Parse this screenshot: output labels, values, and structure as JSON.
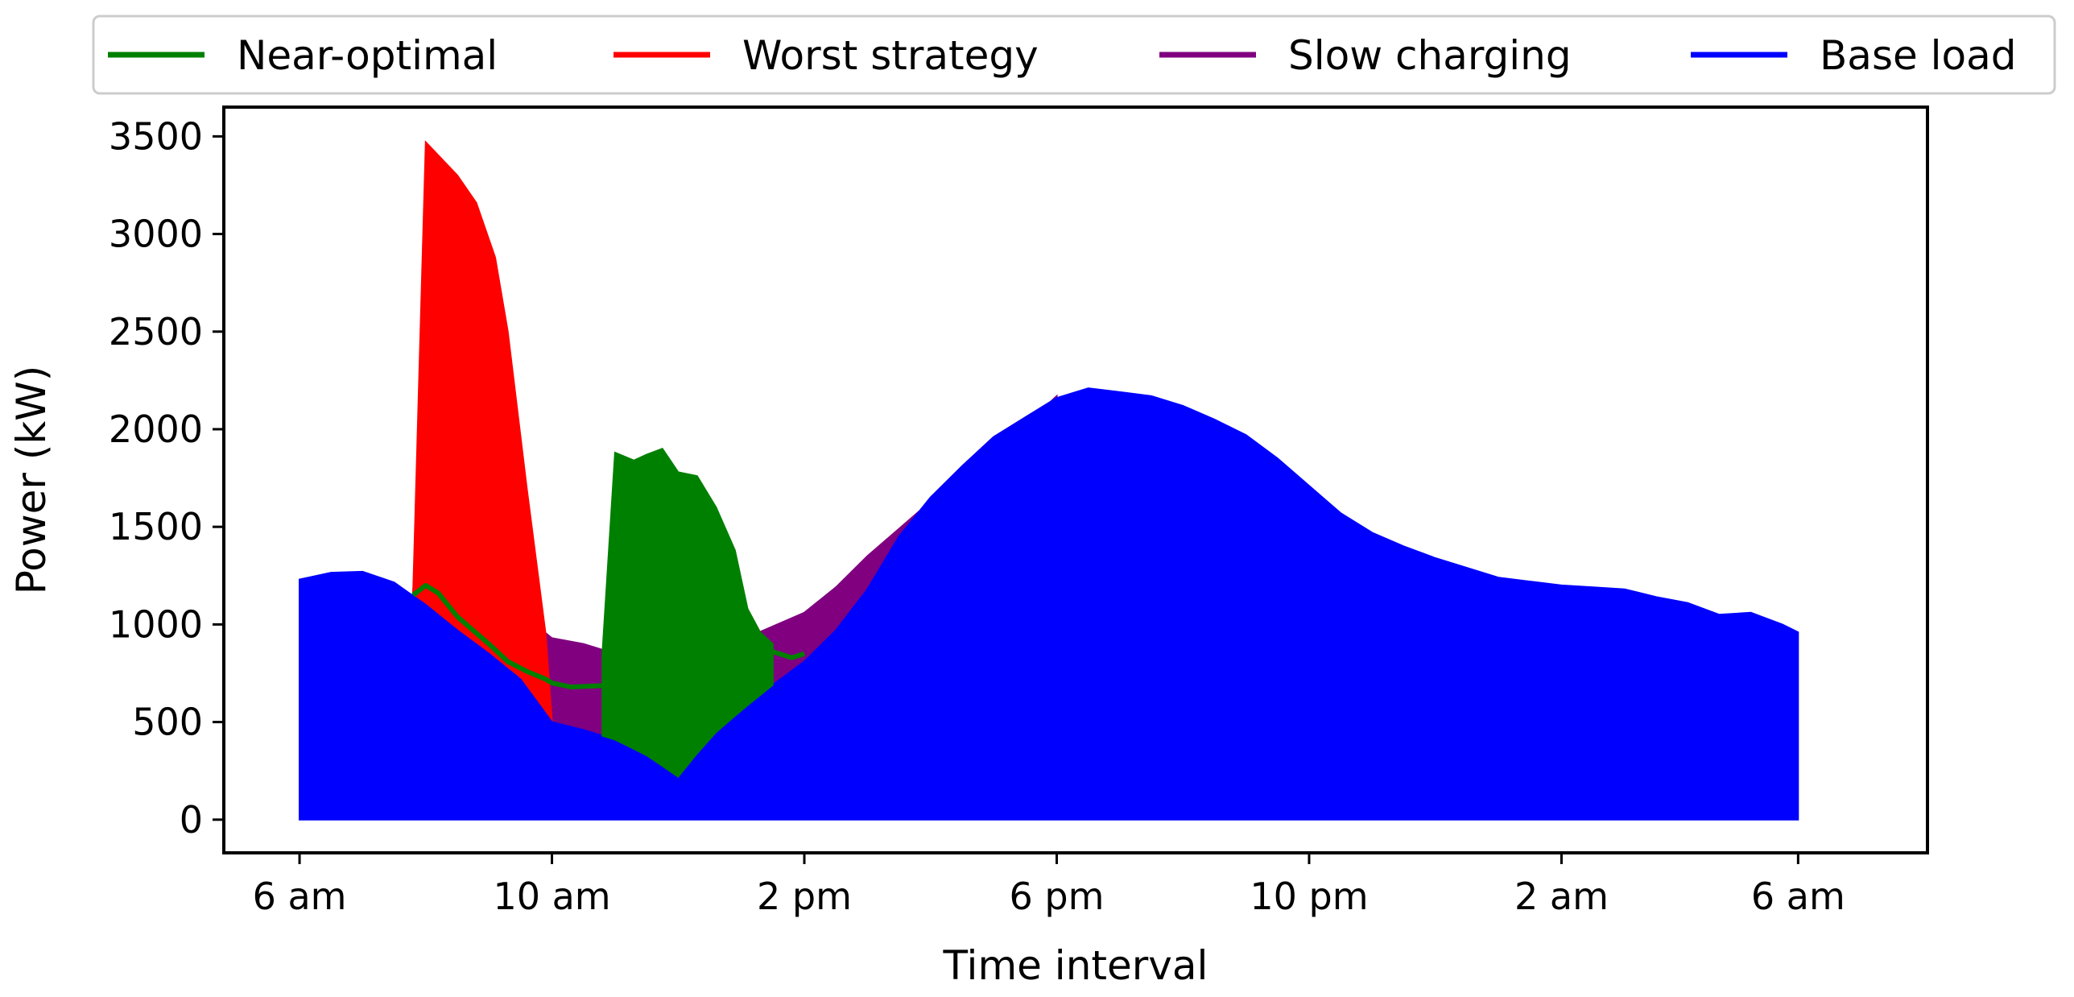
{
  "chart_data": {
    "type": "area",
    "title": "",
    "xlabel": "Time interval",
    "ylabel": "Power (kW)",
    "ylim": [
      -170,
      3650
    ],
    "xlim": [
      -1.2,
      25.8
    ],
    "x_ticks": [
      {
        "value": 0,
        "label": "6 am"
      },
      {
        "value": 4,
        "label": "10 am"
      },
      {
        "value": 8,
        "label": "2 pm"
      },
      {
        "value": 12,
        "label": "6 pm"
      },
      {
        "value": 16,
        "label": "10 pm"
      },
      {
        "value": 20,
        "label": "2 am"
      },
      {
        "value": 23.75,
        "label": "6 am"
      }
    ],
    "y_ticks": [
      {
        "value": 0,
        "label": "0"
      },
      {
        "value": 500,
        "label": "500"
      },
      {
        "value": 1000,
        "label": "1000"
      },
      {
        "value": 1500,
        "label": "1500"
      },
      {
        "value": 2000,
        "label": "2000"
      },
      {
        "value": 2500,
        "label": "2500"
      },
      {
        "value": 3000,
        "label": "3000"
      },
      {
        "value": 3500,
        "label": "3500"
      }
    ],
    "legend": {
      "placement": "top",
      "entries": [
        {
          "label": "Near-optimal",
          "color": "#008000"
        },
        {
          "label": "Worst strategy",
          "color": "#ff0000"
        },
        {
          "label": "Slow charging",
          "color": "#800080"
        },
        {
          "label": "Base load",
          "color": "#0000ff"
        }
      ]
    },
    "series": [
      {
        "name": "Base load",
        "color": "#0000ff",
        "style": "fill-from-zero",
        "points": [
          [
            0,
            1230
          ],
          [
            0.5,
            1265
          ],
          [
            1,
            1270
          ],
          [
            1.5,
            1215
          ],
          [
            2,
            1100
          ],
          [
            2.5,
            970
          ],
          [
            3,
            850
          ],
          [
            3.5,
            720
          ],
          [
            4,
            500
          ],
          [
            4.5,
            460
          ],
          [
            5,
            410
          ],
          [
            5.5,
            330
          ],
          [
            6,
            220
          ],
          [
            6.5,
            420
          ],
          [
            7,
            560
          ],
          [
            7.5,
            690
          ],
          [
            8,
            810
          ],
          [
            8.5,
            970
          ],
          [
            9,
            1180
          ],
          [
            9.5,
            1450
          ],
          [
            10,
            1650
          ],
          [
            10.5,
            1810
          ],
          [
            11,
            1960
          ],
          [
            11.5,
            2060
          ],
          [
            12,
            2160
          ],
          [
            12.5,
            2210
          ],
          [
            13,
            2190
          ],
          [
            13.5,
            2170
          ],
          [
            14,
            2120
          ],
          [
            14.5,
            2050
          ],
          [
            15,
            1970
          ],
          [
            15.5,
            1850
          ],
          [
            16,
            1710
          ],
          [
            16.5,
            1570
          ],
          [
            17,
            1470
          ],
          [
            17.5,
            1400
          ],
          [
            18,
            1340
          ],
          [
            18.5,
            1290
          ],
          [
            19,
            1240
          ],
          [
            19.5,
            1220
          ],
          [
            20,
            1200
          ],
          [
            20.5,
            1190
          ],
          [
            21,
            1180
          ],
          [
            21.5,
            1140
          ],
          [
            22,
            1110
          ],
          [
            22.5,
            1050
          ],
          [
            23,
            1060
          ],
          [
            23.5,
            1000
          ],
          [
            23.75,
            960
          ]
        ]
      },
      {
        "name": "Slow charging",
        "color": "#800080",
        "style": "band-above-base",
        "points": [
          [
            1.8,
            1180
          ],
          [
            2,
            1560
          ],
          [
            2.5,
            1350
          ],
          [
            3,
            1160
          ],
          [
            3.5,
            1060
          ],
          [
            4,
            930
          ],
          [
            4.5,
            900
          ],
          [
            5,
            850
          ],
          [
            5.5,
            760
          ],
          [
            6,
            670
          ],
          [
            6.5,
            820
          ],
          [
            7,
            920
          ],
          [
            7.5,
            990
          ],
          [
            8,
            1060
          ],
          [
            8.5,
            1190
          ],
          [
            9,
            1350
          ],
          [
            9.5,
            1490
          ],
          [
            10,
            1630
          ],
          [
            10.5,
            1780
          ],
          [
            11,
            1920
          ],
          [
            11.5,
            2040
          ],
          [
            11.8,
            2110
          ],
          [
            12,
            2170
          ]
        ]
      },
      {
        "name": "Worst strategy",
        "color": "#ff0000",
        "style": "band-above-base",
        "points": [
          [
            1.8,
            1160
          ],
          [
            2,
            3470
          ],
          [
            2.5,
            3300
          ],
          [
            2.8,
            3160
          ],
          [
            3.1,
            2880
          ],
          [
            3.3,
            2500
          ],
          [
            3.6,
            1700
          ],
          [
            3.9,
            950
          ],
          [
            4,
            500
          ]
        ]
      },
      {
        "name": "Near-optimal",
        "color": "#008000",
        "style": "mixed",
        "line": [
          [
            1.8,
            1150
          ],
          [
            2,
            1200
          ],
          [
            2.2,
            1160
          ],
          [
            2.5,
            1040
          ],
          [
            3,
            900
          ],
          [
            3.3,
            810
          ],
          [
            3.6,
            760
          ],
          [
            3.9,
            720
          ],
          [
            4,
            700
          ],
          [
            4.3,
            680
          ],
          [
            4.7,
            685
          ],
          [
            4.95,
            690
          ],
          [
            5.05,
            830
          ]
        ],
        "fill": [
          [
            4.8,
            850
          ],
          [
            5,
            1880
          ],
          [
            5.3,
            1840
          ],
          [
            5.5,
            1870
          ],
          [
            5.75,
            1900
          ],
          [
            6,
            1780
          ],
          [
            6.3,
            1760
          ],
          [
            6.6,
            1600
          ],
          [
            6.9,
            1380
          ],
          [
            7.1,
            1080
          ],
          [
            7.3,
            960
          ],
          [
            7.5,
            900
          ]
        ],
        "tail": [
          [
            7.2,
            950
          ],
          [
            7.35,
            900
          ],
          [
            7.5,
            860
          ],
          [
            7.8,
            830
          ],
          [
            8,
            850
          ]
        ]
      }
    ]
  }
}
